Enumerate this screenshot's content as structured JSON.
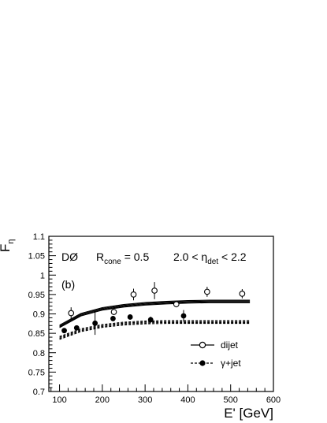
{
  "chart_data": {
    "type": "scatter",
    "panel_label": "(b)",
    "xlabel": "E' [GeV]",
    "ylabel": "F",
    "ylabel_sub": "η",
    "xlim": [
      75,
      600
    ],
    "ylim": [
      0.7,
      1.1
    ],
    "x_ticks": [
      100,
      200,
      300,
      400,
      500,
      600
    ],
    "y_ticks": [
      0.7,
      0.75,
      0.8,
      0.85,
      0.9,
      0.95,
      1,
      1.05,
      1.1
    ],
    "annotations": {
      "experiment": "DØ",
      "rcone_prefix": "R",
      "rcone_sub": "cone",
      "rcone_value": " = 0.5",
      "eta_left": "2.0 < η",
      "eta_sub": "det",
      "eta_right": " < 2.2"
    },
    "series": [
      {
        "name": "dijet",
        "marker": "open-circle",
        "points": [
          {
            "x": 127,
            "y": 0.902,
            "err": 0.015
          },
          {
            "x": 227,
            "y": 0.905,
            "err": 0.008
          },
          {
            "x": 273,
            "y": 0.95,
            "err": 0.015
          },
          {
            "x": 322,
            "y": 0.96,
            "err": 0.022
          },
          {
            "x": 373,
            "y": 0.925,
            "err": 0.008
          },
          {
            "x": 445,
            "y": 0.957,
            "err": 0.013
          },
          {
            "x": 527,
            "y": 0.952,
            "err": 0.012
          }
        ],
        "fit": {
          "x": [
            100,
            150,
            200,
            250,
            300,
            350,
            400,
            450,
            500,
            545
          ],
          "y": [
            0.868,
            0.898,
            0.913,
            0.921,
            0.926,
            0.929,
            0.931,
            0.932,
            0.932,
            0.932
          ]
        }
      },
      {
        "name": "γ+jet",
        "marker": "filled-circle",
        "points": [
          {
            "x": 111,
            "y": 0.857,
            "err": 0.005
          },
          {
            "x": 140,
            "y": 0.864,
            "err": 0.004
          },
          {
            "x": 183,
            "y": 0.876,
            "err": 0.03
          },
          {
            "x": 225,
            "y": 0.888,
            "err": 0.007
          },
          {
            "x": 265,
            "y": 0.892,
            "err": 0.007
          },
          {
            "x": 313,
            "y": 0.885,
            "err": 0.008
          },
          {
            "x": 390,
            "y": 0.895,
            "err": 0.015
          }
        ],
        "fit": {
          "x": [
            100,
            150,
            200,
            250,
            300,
            350,
            400,
            450,
            500,
            545
          ],
          "y": [
            0.838,
            0.858,
            0.869,
            0.875,
            0.878,
            0.879,
            0.879,
            0.879,
            0.879,
            0.879
          ]
        }
      }
    ],
    "legend": {
      "position": "bottom-right"
    },
    "grid": false
  }
}
